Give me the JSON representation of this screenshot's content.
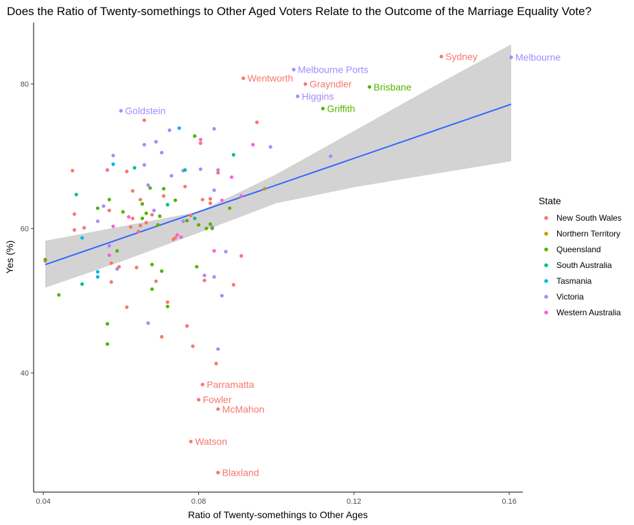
{
  "chart_data": {
    "type": "scatter",
    "title": "Does the Ratio of Twenty-somethings to Other Aged Voters Relate to the Outcome of the Marriage Equality Vote?",
    "xlabel": "Ratio of Twenty-somethings to Other Ages",
    "ylabel": "Yes (%)",
    "xlim": [
      0.0375,
      0.1635
    ],
    "ylim": [
      23.5,
      88.5
    ],
    "x_ticks": [
      0.04,
      0.08,
      0.12,
      0.16
    ],
    "x_tick_labels": [
      "0.04",
      "0.08",
      "0.12",
      "0.16"
    ],
    "y_ticks": [
      40,
      60,
      80
    ],
    "y_tick_labels": [
      "40",
      "60",
      "80"
    ],
    "grid": false,
    "legend_position": "right",
    "legend": {
      "title": "State",
      "entries": [
        {
          "name": "New South Wales",
          "color": "#F8766D"
        },
        {
          "name": "Northern Territory",
          "color": "#C49A00"
        },
        {
          "name": "Queensland",
          "color": "#53B400"
        },
        {
          "name": "South Australia",
          "color": "#00C094"
        },
        {
          "name": "Tasmania",
          "color": "#00B6EB"
        },
        {
          "name": "Victoria",
          "color": "#A58AFF"
        },
        {
          "name": "Western Australia",
          "color": "#FB61D7"
        }
      ]
    },
    "trend": {
      "line": [
        [
          0.0405,
          55.0
        ],
        [
          0.1605,
          77.2
        ]
      ],
      "band_upper": [
        [
          0.0405,
          58.3
        ],
        [
          0.08,
          62.3
        ],
        [
          0.1,
          67.5
        ],
        [
          0.12,
          73.5
        ],
        [
          0.14,
          79.5
        ],
        [
          0.1605,
          85.5
        ]
      ],
      "band_lower": [
        [
          0.0405,
          51.8
        ],
        [
          0.06,
          55.4
        ],
        [
          0.08,
          59.4
        ],
        [
          0.1,
          63.5
        ],
        [
          0.12,
          65.7
        ],
        [
          0.14,
          67.5
        ],
        [
          0.1605,
          69.3
        ]
      ],
      "line_color": "#3366FF",
      "band_color": "#D3D3D3"
    },
    "labeled_points": [
      {
        "label": "Sydney",
        "x": 0.1425,
        "y": 83.8,
        "state": 0
      },
      {
        "label": "Melbourne",
        "x": 0.1605,
        "y": 83.7,
        "state": 5
      },
      {
        "label": "Melbourne Ports",
        "x": 0.1045,
        "y": 82.0,
        "state": 5
      },
      {
        "label": "Wentworth",
        "x": 0.0915,
        "y": 80.8,
        "state": 0
      },
      {
        "label": "Grayndler",
        "x": 0.1075,
        "y": 80.0,
        "state": 0
      },
      {
        "label": "Brisbane",
        "x": 0.124,
        "y": 79.6,
        "state": 2
      },
      {
        "label": "Higgins",
        "x": 0.1055,
        "y": 78.3,
        "state": 5
      },
      {
        "label": "Griffith",
        "x": 0.112,
        "y": 76.6,
        "state": 2
      },
      {
        "label": "Goldstein",
        "x": 0.06,
        "y": 76.3,
        "state": 5
      },
      {
        "label": "Parramatta",
        "x": 0.081,
        "y": 38.4,
        "state": 0
      },
      {
        "label": "Fowler",
        "x": 0.08,
        "y": 36.3,
        "state": 0
      },
      {
        "label": "McMahon",
        "x": 0.085,
        "y": 35.0,
        "state": 0
      },
      {
        "label": "Watson",
        "x": 0.078,
        "y": 30.5,
        "state": 0
      },
      {
        "label": "Blaxland",
        "x": 0.085,
        "y": 26.2,
        "state": 0
      }
    ],
    "points": [
      [
        0.0405,
        55.5,
        0
      ],
      [
        0.0405,
        55.7,
        2
      ],
      [
        0.044,
        50.8,
        2
      ],
      [
        0.0475,
        68.0,
        0
      ],
      [
        0.048,
        62.0,
        0
      ],
      [
        0.048,
        59.8,
        0
      ],
      [
        0.0485,
        64.7,
        3
      ],
      [
        0.05,
        58.7,
        4
      ],
      [
        0.05,
        52.3,
        3
      ],
      [
        0.0505,
        60.1,
        0
      ],
      [
        0.054,
        62.8,
        2
      ],
      [
        0.054,
        61.0,
        5
      ],
      [
        0.054,
        54.0,
        4
      ],
      [
        0.054,
        53.3,
        4
      ],
      [
        0.0555,
        63.1,
        5
      ],
      [
        0.0565,
        68.1,
        0
      ],
      [
        0.0565,
        46.8,
        2
      ],
      [
        0.0565,
        44.0,
        2
      ],
      [
        0.057,
        64.0,
        2
      ],
      [
        0.057,
        57.6,
        5
      ],
      [
        0.057,
        56.3,
        6
      ],
      [
        0.057,
        62.5,
        0
      ],
      [
        0.0575,
        55.2,
        0
      ],
      [
        0.0575,
        52.6,
        0
      ],
      [
        0.058,
        68.9,
        4
      ],
      [
        0.058,
        70.1,
        5
      ],
      [
        0.058,
        60.3,
        6
      ],
      [
        0.059,
        56.9,
        2
      ],
      [
        0.059,
        54.4,
        5
      ],
      [
        0.0595,
        54.7,
        0
      ],
      [
        0.0605,
        62.3,
        2
      ],
      [
        0.0615,
        67.9,
        0
      ],
      [
        0.0615,
        49.1,
        0
      ],
      [
        0.062,
        61.6,
        6
      ],
      [
        0.0625,
        60.2,
        0
      ],
      [
        0.063,
        65.2,
        0
      ],
      [
        0.063,
        61.4,
        0
      ],
      [
        0.0635,
        68.4,
        3
      ],
      [
        0.064,
        54.6,
        0
      ],
      [
        0.0645,
        59.6,
        0
      ],
      [
        0.065,
        64.0,
        0
      ],
      [
        0.065,
        60.4,
        0
      ],
      [
        0.0655,
        63.4,
        2
      ],
      [
        0.0655,
        61.4,
        2
      ],
      [
        0.066,
        68.8,
        5
      ],
      [
        0.066,
        71.6,
        5
      ],
      [
        0.066,
        75.0,
        0
      ],
      [
        0.0665,
        62.1,
        2
      ],
      [
        0.0665,
        60.8,
        0
      ],
      [
        0.067,
        66.0,
        5
      ],
      [
        0.067,
        46.9,
        5
      ],
      [
        0.0675,
        65.6,
        2
      ],
      [
        0.068,
        55.0,
        2
      ],
      [
        0.068,
        51.6,
        2
      ],
      [
        0.068,
        61.9,
        0
      ],
      [
        0.0685,
        62.5,
        5
      ],
      [
        0.069,
        72.0,
        5
      ],
      [
        0.069,
        52.7,
        0
      ],
      [
        0.0695,
        60.5,
        2
      ],
      [
        0.07,
        61.7,
        2
      ],
      [
        0.0705,
        70.5,
        5
      ],
      [
        0.0705,
        54.1,
        2
      ],
      [
        0.0705,
        45.0,
        0
      ],
      [
        0.071,
        65.5,
        2
      ],
      [
        0.071,
        64.5,
        0
      ],
      [
        0.072,
        63.3,
        3
      ],
      [
        0.072,
        49.8,
        0
      ],
      [
        0.072,
        49.2,
        2
      ],
      [
        0.0725,
        73.6,
        5
      ],
      [
        0.073,
        67.3,
        5
      ],
      [
        0.0735,
        58.5,
        0
      ],
      [
        0.074,
        63.9,
        2
      ],
      [
        0.074,
        58.7,
        0
      ],
      [
        0.0745,
        59.1,
        6
      ],
      [
        0.075,
        73.9,
        4
      ],
      [
        0.0755,
        58.8,
        6
      ],
      [
        0.076,
        68.0,
        5
      ],
      [
        0.076,
        61.0,
        5
      ],
      [
        0.0765,
        68.1,
        3
      ],
      [
        0.0765,
        65.8,
        0
      ],
      [
        0.077,
        61.1,
        2
      ],
      [
        0.077,
        46.5,
        0
      ],
      [
        0.078,
        61.8,
        0
      ],
      [
        0.0785,
        43.7,
        0
      ],
      [
        0.079,
        72.8,
        2
      ],
      [
        0.079,
        61.4,
        3
      ],
      [
        0.0795,
        54.7,
        2
      ],
      [
        0.08,
        60.5,
        2
      ],
      [
        0.0805,
        72.3,
        6
      ],
      [
        0.0805,
        71.8,
        0
      ],
      [
        0.0805,
        68.2,
        5
      ],
      [
        0.081,
        64.0,
        0
      ],
      [
        0.0815,
        53.5,
        5
      ],
      [
        0.0815,
        52.8,
        0
      ],
      [
        0.082,
        60.0,
        2
      ],
      [
        0.083,
        64.1,
        0
      ],
      [
        0.083,
        63.5,
        0
      ],
      [
        0.083,
        60.6,
        2
      ],
      [
        0.0835,
        60.2,
        5
      ],
      [
        0.0835,
        60.0,
        2
      ],
      [
        0.084,
        73.8,
        5
      ],
      [
        0.084,
        65.3,
        5
      ],
      [
        0.084,
        56.9,
        6
      ],
      [
        0.084,
        53.3,
        5
      ],
      [
        0.0845,
        41.3,
        0
      ],
      [
        0.085,
        68.1,
        5
      ],
      [
        0.085,
        67.7,
        0
      ],
      [
        0.085,
        43.3,
        5
      ],
      [
        0.086,
        63.9,
        6
      ],
      [
        0.086,
        50.7,
        5
      ],
      [
        0.087,
        56.8,
        5
      ],
      [
        0.088,
        62.8,
        2
      ],
      [
        0.0885,
        67.1,
        6
      ],
      [
        0.089,
        70.2,
        3
      ],
      [
        0.089,
        52.2,
        0
      ],
      [
        0.091,
        64.5,
        6
      ],
      [
        0.091,
        56.2,
        0
      ],
      [
        0.094,
        71.6,
        6
      ],
      [
        0.095,
        74.7,
        0
      ],
      [
        0.097,
        65.5,
        1
      ],
      [
        0.0985,
        71.3,
        5
      ],
      [
        0.114,
        70.0,
        5
      ]
    ]
  }
}
